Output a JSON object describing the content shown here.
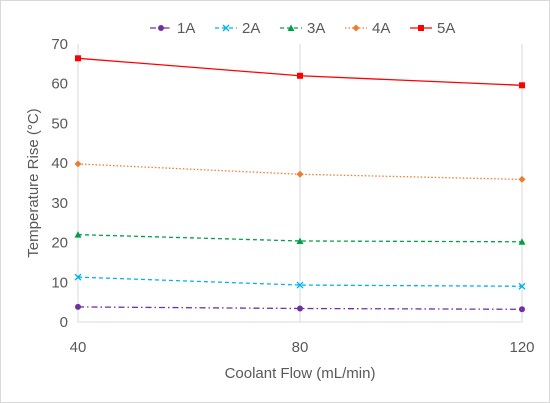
{
  "chart_data": {
    "type": "line",
    "title": "",
    "xlabel": "Coolant Flow (mL/min)",
    "ylabel": "Temperature Rise (°C)",
    "x": [
      40,
      80,
      120
    ],
    "x_tick_labels": [
      "40",
      "80",
      "120"
    ],
    "ylim": [
      0,
      70
    ],
    "y_ticks": [
      0,
      10,
      20,
      30,
      40,
      50,
      60,
      70
    ],
    "grid": "vertical gridlines on",
    "legend_position": "top",
    "series": [
      {
        "name": "1A",
        "values": [
          3.8,
          3.4,
          3.2
        ],
        "color": "#7030A0",
        "dash": "dash-dot",
        "marker": "circle"
      },
      {
        "name": "2A",
        "values": [
          11.3,
          9.3,
          9.0
        ],
        "color": "#00B0F0",
        "dash": "dashed",
        "marker": "x"
      },
      {
        "name": "3A",
        "values": [
          22.0,
          20.4,
          20.2
        ],
        "color": "#00A04A",
        "dash": "dashed",
        "marker": "triangle"
      },
      {
        "name": "4A",
        "values": [
          39.8,
          37.2,
          35.9
        ],
        "color": "#ED7D31",
        "dash": "dotted",
        "marker": "diamond"
      },
      {
        "name": "5A",
        "values": [
          66.4,
          62.0,
          59.6
        ],
        "color": "#FF0000",
        "dash": "solid",
        "marker": "square"
      }
    ]
  }
}
